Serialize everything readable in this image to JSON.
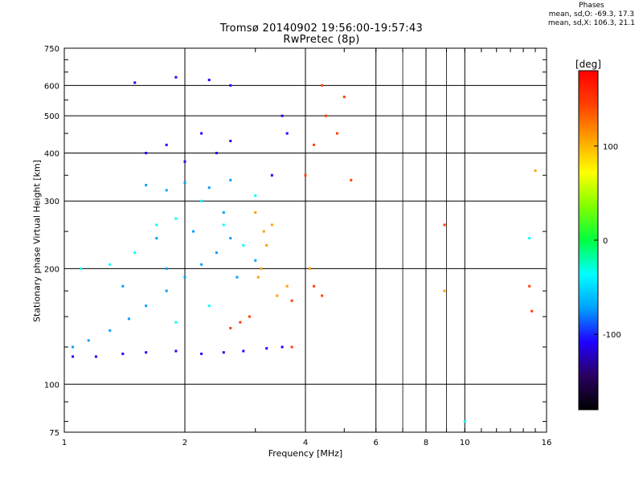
{
  "chart_data": {
    "type": "scatter",
    "title": "Tromsø 20140902 19:56:00-19:57:43",
    "subtitle": "RwPretec (8p)",
    "xlabel": "Frequency [MHz]",
    "ylabel": "Stationary phase Virtual Height [km]",
    "x_scale": "log",
    "y_scale": "log",
    "xlim": [
      1,
      16
    ],
    "ylim": [
      75,
      750
    ],
    "x_ticks": [
      1,
      2,
      4,
      6,
      8,
      10,
      16
    ],
    "x_minor_lines": [
      7,
      9
    ],
    "y_ticks": [
      75,
      100,
      200,
      300,
      400,
      500,
      600,
      750
    ],
    "grid": true,
    "phase_stats": {
      "heading": "Phases",
      "line1": "mean, sd,O: -69.3, 17.3",
      "line2": "mean, sd,X: 106.3, 21.1"
    },
    "colorbar": {
      "label": "[deg]",
      "ticks": [
        "100",
        "0",
        "-100"
      ],
      "tick_values": [
        100,
        0,
        -100
      ],
      "range": [
        -180,
        180
      ],
      "colors": [
        "#000000",
        "#2a0060",
        "#2000ff",
        "#00a0ff",
        "#00ffff",
        "#00ff40",
        "#80ff00",
        "#ffff00",
        "#ffa000",
        "#ff4000",
        "#ff0000"
      ]
    },
    "series": [
      {
        "phase_deg": -110,
        "points": [
          [
            1.05,
            118
          ],
          [
            1.2,
            118
          ],
          [
            1.4,
            120
          ],
          [
            1.6,
            121
          ],
          [
            1.9,
            122
          ],
          [
            2.2,
            120
          ],
          [
            2.5,
            121
          ],
          [
            2.8,
            122
          ],
          [
            3.2,
            124
          ],
          [
            3.5,
            125
          ],
          [
            1.6,
            400
          ],
          [
            1.8,
            420
          ],
          [
            2.0,
            380
          ],
          [
            2.2,
            450
          ],
          [
            2.4,
            400
          ],
          [
            2.6,
            430
          ],
          [
            3.3,
            350
          ],
          [
            3.5,
            500
          ],
          [
            3.6,
            450
          ],
          [
            1.5,
            610
          ],
          [
            1.9,
            630
          ],
          [
            2.3,
            620
          ],
          [
            2.6,
            600
          ]
        ]
      },
      {
        "phase_deg": -60,
        "points": [
          [
            1.05,
            125
          ],
          [
            1.15,
            130
          ],
          [
            1.3,
            138
          ],
          [
            1.45,
            148
          ],
          [
            1.6,
            160
          ],
          [
            1.8,
            175
          ],
          [
            2.0,
            190
          ],
          [
            2.2,
            205
          ],
          [
            2.4,
            220
          ],
          [
            2.6,
            240
          ],
          [
            1.6,
            330
          ],
          [
            1.8,
            320
          ],
          [
            2.0,
            335
          ],
          [
            2.3,
            325
          ],
          [
            2.6,
            340
          ],
          [
            1.8,
            200
          ],
          [
            2.1,
            250
          ],
          [
            2.5,
            280
          ],
          [
            1.7,
            240
          ],
          [
            1.4,
            180
          ],
          [
            2.7,
            190
          ],
          [
            3.0,
            210
          ]
        ]
      },
      {
        "phase_deg": -20,
        "points": [
          [
            1.1,
            200
          ],
          [
            1.3,
            205
          ],
          [
            1.5,
            220
          ],
          [
            1.7,
            260
          ],
          [
            1.9,
            270
          ],
          [
            2.2,
            300
          ],
          [
            2.5,
            260
          ],
          [
            2.8,
            230
          ],
          [
            3.0,
            310
          ],
          [
            2.3,
            160
          ],
          [
            1.9,
            145
          ],
          [
            10.0,
            80
          ],
          [
            14.5,
            240
          ]
        ]
      },
      {
        "phase_deg": 100,
        "points": [
          [
            3.1,
            200
          ],
          [
            3.2,
            230
          ],
          [
            3.3,
            260
          ],
          [
            3.15,
            250
          ],
          [
            3.05,
            190
          ],
          [
            3.4,
            170
          ],
          [
            3.6,
            180
          ],
          [
            4.1,
            200
          ],
          [
            3.0,
            280
          ],
          [
            8.9,
            175
          ],
          [
            15.0,
            360
          ]
        ]
      },
      {
        "phase_deg": 150,
        "points": [
          [
            2.6,
            140
          ],
          [
            2.75,
            145
          ],
          [
            2.9,
            150
          ],
          [
            3.7,
            165
          ],
          [
            4.2,
            180
          ],
          [
            4.4,
            170
          ],
          [
            4.0,
            350
          ],
          [
            4.2,
            420
          ],
          [
            4.5,
            500
          ],
          [
            4.4,
            600
          ],
          [
            4.8,
            450
          ],
          [
            5.0,
            560
          ],
          [
            5.2,
            340
          ],
          [
            3.7,
            125
          ],
          [
            8.9,
            260
          ],
          [
            14.5,
            180
          ],
          [
            14.7,
            155
          ]
        ]
      }
    ]
  }
}
